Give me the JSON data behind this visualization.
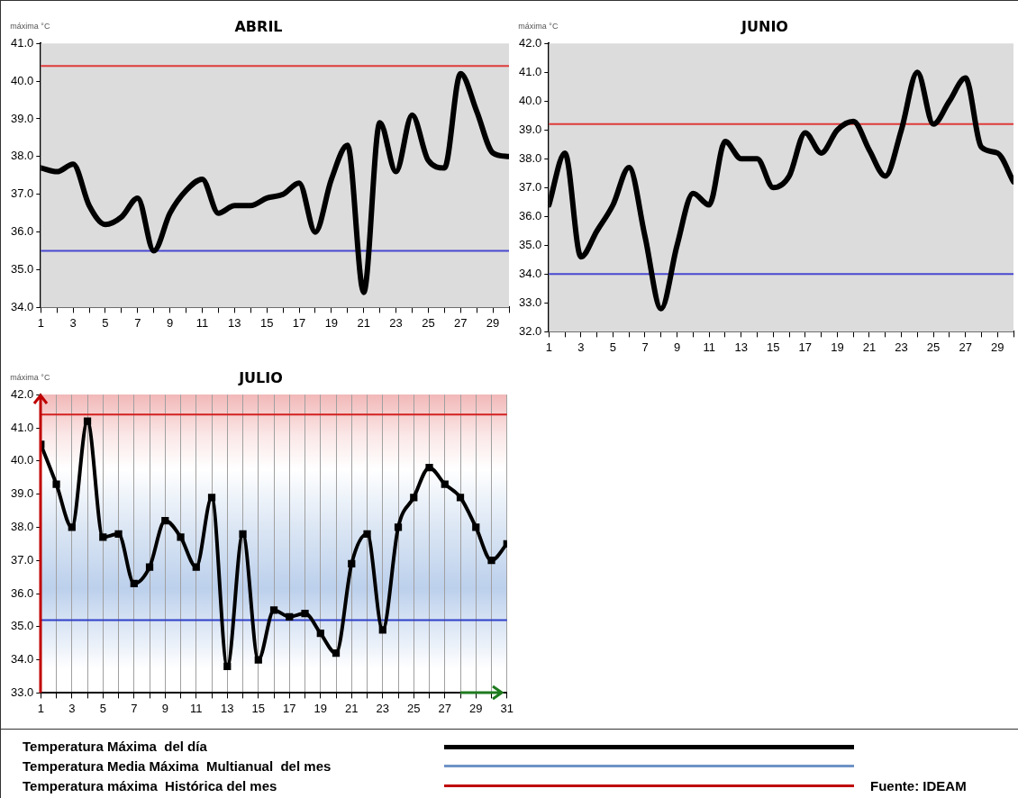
{
  "chart_data": [
    {
      "type": "line",
      "title": "ABRIL",
      "ylabel": "máxima °C",
      "x": [
        1,
        2,
        3,
        4,
        5,
        6,
        7,
        8,
        9,
        10,
        11,
        12,
        13,
        14,
        15,
        16,
        17,
        18,
        19,
        20,
        21,
        22,
        23,
        24,
        25,
        26,
        27,
        28,
        29,
        30
      ],
      "series": [
        {
          "color": "#000000",
          "values": [
            37.7,
            37.6,
            37.8,
            36.7,
            36.2,
            36.4,
            36.9,
            35.5,
            36.5,
            37.1,
            37.4,
            36.5,
            36.7,
            36.7,
            36.9,
            37.0,
            37.3,
            36.0,
            37.4,
            38.3,
            34.4,
            38.9,
            37.6,
            39.1,
            37.9,
            37.7,
            40.2,
            39.2,
            38.1,
            38.0
          ]
        }
      ],
      "xlim": [
        1,
        30
      ],
      "xticks": [
        1,
        {
          "value": 2,
          "label": null
        },
        3,
        {
          "value": 4,
          "label": null
        },
        5,
        {
          "value": 6,
          "label": null
        },
        7,
        {
          "value": 8,
          "label": null
        },
        9,
        {
          "value": 10,
          "label": null
        },
        11,
        {
          "value": 12,
          "label": null
        },
        13,
        {
          "value": 14,
          "label": null
        },
        15,
        {
          "value": 16,
          "label": null
        },
        17,
        {
          "value": 18,
          "label": null
        },
        19,
        {
          "value": 20,
          "label": null
        },
        21,
        {
          "value": 22,
          "label": null
        },
        23,
        {
          "value": 24,
          "label": null
        },
        25,
        {
          "value": 26,
          "label": null
        },
        27,
        {
          "value": 28,
          "label": null
        },
        29,
        {
          "value": 30,
          "label": null
        }
      ],
      "ylim": [
        34,
        41
      ],
      "yticks": [
        {
          "value": 34,
          "label": "34.0"
        },
        {
          "value": 35,
          "label": "35.0"
        },
        {
          "value": 36,
          "label": "36.0"
        },
        {
          "value": 37,
          "label": "37.0"
        },
        {
          "value": 38,
          "label": "38.0"
        },
        {
          "value": 39,
          "label": "39.0"
        },
        {
          "value": 40,
          "label": "40.0"
        },
        {
          "value": 41,
          "label": "41.0"
        }
      ],
      "ref_lines": [
        {
          "axis": "y",
          "value": 40.4,
          "color": "#e03a3a"
        },
        {
          "axis": "y",
          "value": 35.5,
          "color": "#4848d0"
        }
      ]
    },
    {
      "type": "line",
      "title": "JUNIO",
      "ylabel": "máxima °C",
      "x": [
        1,
        2,
        3,
        4,
        5,
        6,
        7,
        8,
        9,
        10,
        11,
        12,
        13,
        14,
        15,
        16,
        17,
        18,
        19,
        20,
        21,
        22,
        23,
        24,
        25,
        26,
        27,
        28,
        29,
        30
      ],
      "series": [
        {
          "color": "#000000",
          "values": [
            36.4,
            38.2,
            34.6,
            35.5,
            36.4,
            37.7,
            35.3,
            32.8,
            35.0,
            36.8,
            36.4,
            38.6,
            38.0,
            38.0,
            37.0,
            37.4,
            38.9,
            38.2,
            39.0,
            39.3,
            38.3,
            37.4,
            39.0,
            41.0,
            39.2,
            40.0,
            40.8,
            38.4,
            38.2,
            37.2
          ]
        }
      ],
      "xlim": [
        1,
        30
      ],
      "xticks": [
        1,
        {
          "value": 2,
          "label": null
        },
        3,
        {
          "value": 4,
          "label": null
        },
        5,
        {
          "value": 6,
          "label": null
        },
        7,
        {
          "value": 8,
          "label": null
        },
        9,
        {
          "value": 10,
          "label": null
        },
        11,
        {
          "value": 12,
          "label": null
        },
        13,
        {
          "value": 14,
          "label": null
        },
        15,
        {
          "value": 16,
          "label": null
        },
        17,
        {
          "value": 18,
          "label": null
        },
        19,
        {
          "value": 20,
          "label": null
        },
        21,
        {
          "value": 22,
          "label": null
        },
        23,
        {
          "value": 24,
          "label": null
        },
        25,
        {
          "value": 26,
          "label": null
        },
        27,
        {
          "value": 28,
          "label": null
        },
        29,
        {
          "value": 30,
          "label": null
        }
      ],
      "ylim": [
        32,
        42
      ],
      "yticks": [
        {
          "value": 32,
          "label": "32.0"
        },
        {
          "value": 33,
          "label": "33.0"
        },
        {
          "value": 34,
          "label": "34.0"
        },
        {
          "value": 35,
          "label": "35.0"
        },
        {
          "value": 36,
          "label": "36.0"
        },
        {
          "value": 37,
          "label": "37.0"
        },
        {
          "value": 38,
          "label": "38.0"
        },
        {
          "value": 39,
          "label": "39.0"
        },
        {
          "value": 40,
          "label": "40.0"
        },
        {
          "value": 41,
          "label": "41.0"
        },
        {
          "value": 42,
          "label": "42.0"
        }
      ],
      "ref_lines": [
        {
          "axis": "y",
          "value": 39.2,
          "color": "#e03a3a"
        },
        {
          "axis": "y",
          "value": 34.0,
          "color": "#4848d0"
        }
      ]
    },
    {
      "type": "line",
      "title": "JULIO",
      "ylabel": "máxima °C",
      "x": [
        1,
        2,
        3,
        4,
        5,
        6,
        7,
        8,
        9,
        10,
        11,
        12,
        13,
        14,
        15,
        16,
        17,
        18,
        19,
        20,
        21,
        22,
        23,
        24,
        25,
        26,
        27,
        28,
        29,
        30,
        31
      ],
      "series": [
        {
          "color": "#000000",
          "values": [
            40.5,
            39.3,
            38.0,
            41.2,
            37.7,
            37.8,
            36.3,
            36.8,
            38.2,
            37.7,
            36.8,
            38.9,
            33.8,
            37.8,
            34.0,
            35.5,
            35.3,
            35.4,
            34.8,
            34.2,
            36.9,
            37.8,
            34.9,
            38.0,
            38.9,
            39.8,
            39.3,
            38.9,
            38.0,
            37.0,
            37.5
          ]
        }
      ],
      "marker": "square",
      "grid": "x",
      "xlim": [
        1,
        31
      ],
      "xticks": [
        1,
        {
          "value": 2,
          "label": null
        },
        3,
        {
          "value": 4,
          "label": null
        },
        5,
        {
          "value": 6,
          "label": null
        },
        7,
        {
          "value": 8,
          "label": null
        },
        9,
        {
          "value": 10,
          "label": null
        },
        11,
        {
          "value": 12,
          "label": null
        },
        13,
        {
          "value": 14,
          "label": null
        },
        15,
        {
          "value": 16,
          "label": null
        },
        17,
        {
          "value": 18,
          "label": null
        },
        19,
        {
          "value": 20,
          "label": null
        },
        21,
        {
          "value": 22,
          "label": null
        },
        23,
        {
          "value": 24,
          "label": null
        },
        25,
        {
          "value": 26,
          "label": null
        },
        27,
        {
          "value": 28,
          "label": null
        },
        29,
        {
          "value": 30,
          "label": null
        },
        31
      ],
      "ylim": [
        33,
        42
      ],
      "yticks": [
        {
          "value": 33,
          "label": "33.0"
        },
        {
          "value": 34,
          "label": "34.0"
        },
        {
          "value": 35,
          "label": "35.0"
        },
        {
          "value": 36,
          "label": "36.0"
        },
        {
          "value": 37,
          "label": "37.0"
        },
        {
          "value": 38,
          "label": "38.0"
        },
        {
          "value": 39,
          "label": "39.0"
        },
        {
          "value": 40,
          "label": "40.0"
        },
        {
          "value": 41,
          "label": "41.0"
        },
        {
          "value": 42,
          "label": "42.0"
        }
      ],
      "ref_lines": [
        {
          "axis": "y",
          "value": 41.4,
          "color": "#d42020"
        },
        {
          "axis": "y",
          "value": 35.2,
          "color": "#3040c8"
        }
      ]
    },
    {
      "type": "other",
      "annotations": [
        "Temperatura Máxima  del día",
        "Temperatura Media Máxima  Multianual  del mes",
        "Temperatura máxima  Histórica del mes",
        "Fuente: IDEAM"
      ],
      "colors": [
        "#000000",
        "#6f93c6",
        "#c00000"
      ]
    }
  ]
}
